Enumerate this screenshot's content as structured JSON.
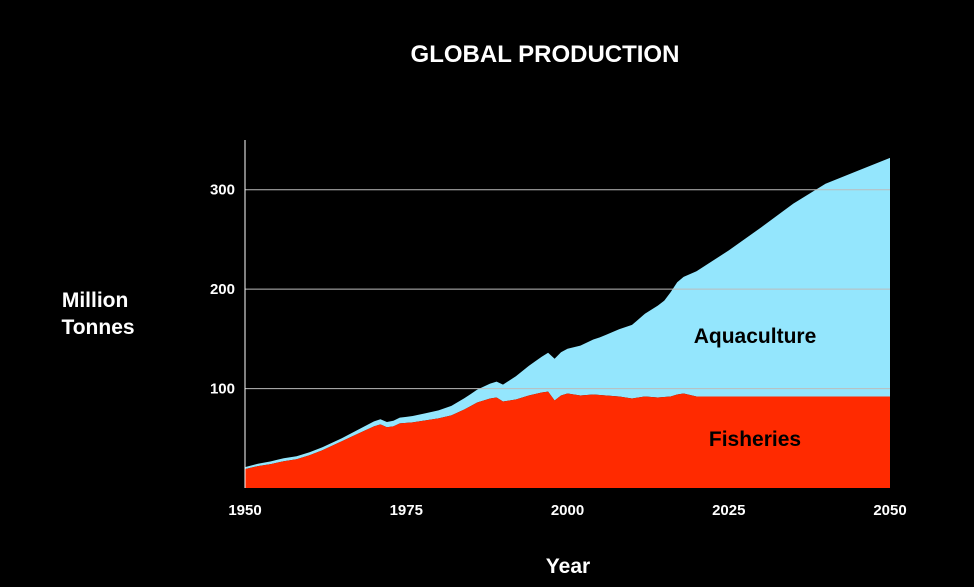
{
  "chart_data": {
    "type": "area",
    "title": "GLOBAL PRODUCTION",
    "xlabel": "Year",
    "ylabel_lines": [
      "Million",
      "Tonnes"
    ],
    "xlim": [
      1950,
      2050
    ],
    "ylim": [
      0,
      350
    ],
    "x_ticks": [
      1950,
      1975,
      2000,
      2025,
      2050
    ],
    "y_ticks": [
      100,
      200,
      300
    ],
    "grid": "horizontal",
    "stacked": true,
    "series": [
      {
        "name": "Fisheries",
        "color": "#ff2a00",
        "x": [
          1950,
          1952,
          1954,
          1956,
          1958,
          1960,
          1962,
          1964,
          1966,
          1968,
          1970,
          1971,
          1972,
          1973,
          1974,
          1976,
          1978,
          1980,
          1982,
          1984,
          1986,
          1988,
          1989,
          1990,
          1992,
          1994,
          1996,
          1997,
          1998,
          1999,
          2000,
          2002,
          2004,
          2006,
          2008,
          2010,
          2012,
          2014,
          2016,
          2017,
          2018,
          2020,
          2050
        ],
        "values": [
          19,
          22,
          24,
          27,
          29,
          33,
          38,
          44,
          50,
          56,
          62,
          64,
          61,
          62,
          65,
          66,
          68,
          70,
          73,
          79,
          86,
          90,
          91,
          87,
          89,
          93,
          96,
          97,
          88,
          93,
          95,
          93,
          94,
          93,
          92,
          90,
          92,
          91,
          92,
          94,
          95,
          92,
          92
        ]
      },
      {
        "name": "Aquaculture",
        "color": "#94e6fd",
        "x": [
          1950,
          1955,
          1960,
          1965,
          1970,
          1975,
          1980,
          1985,
          1990,
          1995,
          1998,
          2000,
          2005,
          2010,
          2015,
          2017,
          2020,
          2025,
          2030,
          2035,
          2040,
          2045,
          2050
        ],
        "values": [
          2,
          3,
          3,
          3,
          5,
          6,
          8,
          12,
          17,
          33,
          42,
          45,
          58,
          74,
          97,
          113,
          126,
          147,
          170,
          194,
          214,
          227,
          240
        ]
      }
    ]
  }
}
